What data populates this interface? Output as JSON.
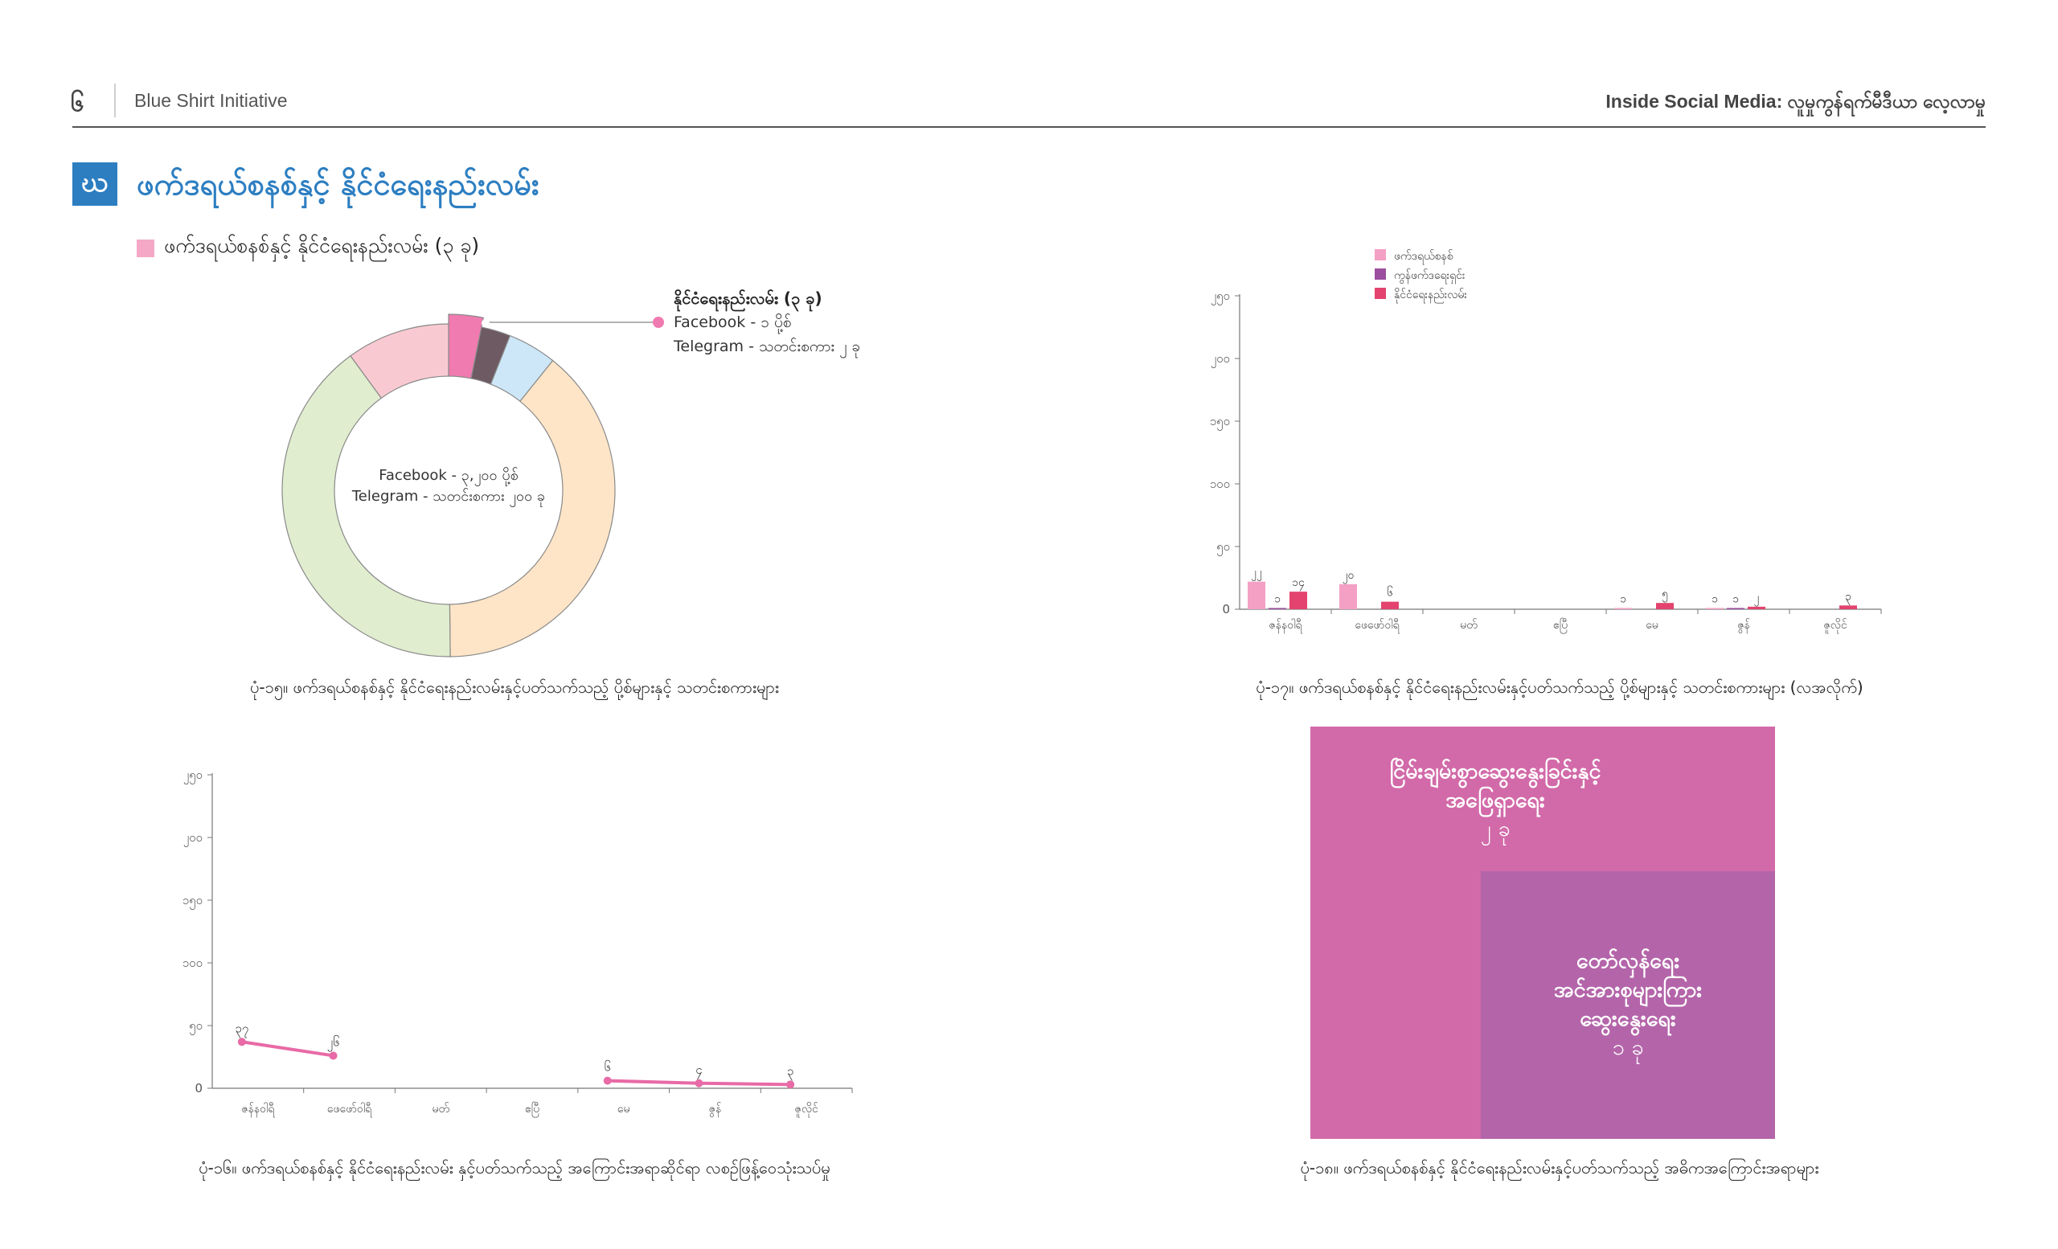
{
  "header": {
    "page_number": "၆",
    "organization": "Blue Shirt Initiative",
    "publication": "Inside Social Media: လူမှုကွန်ရက်မီဒီယာ လေ့လာမှု"
  },
  "section": {
    "letter": "ဃ",
    "title": "ဖက်ဒရယ်စနစ်နှင့် နိုင်ငံရေးနည်းလမ်း",
    "legend_label": "ဖက်ဒရယ်စနစ်နှင့် နိုင်ငံရေးနည်းလမ်း (၃ ခု)"
  },
  "donut": {
    "center_line1": "Facebook - ၃,၂၀၀ ပို့စ်",
    "center_line2": "Telegram - သတင်းစကား ၂၀၀ ခု",
    "callout_title": "နိုင်ငံရေးနည်းလမ်း (၃ ခု)",
    "callout_facebook": "Facebook  -    ၁ ပို့စ်",
    "callout_telegram": "Telegram  -    သတင်းစကား ၂ ခု",
    "caption": "ပုံ-၁၅။ ဖက်ဒရယ်စနစ်နှင့် နိုင်ငံရေးနည်းလမ်းနှင့်ပတ်သက်သည့် ပို့စ်များနှင့် သတင်းစကားများ"
  },
  "bar_chart": {
    "legend": [
      "ဖက်ဒရယ်စနစ်",
      "ကွန်ဖက်ဒရေးရှင်း",
      "နိုင်ငံရေးနည်းလမ်း"
    ],
    "colors": [
      "#f4a0c4",
      "#9b4f9e",
      "#e3436e"
    ],
    "caption": "ပုံ-၁၇။ ဖက်ဒရယ်စနစ်နှင့် နိုင်ငံရေးနည်းလမ်းနှင့်ပတ်သက်သည့် ပို့စ်များနှင့် သတင်းစကားများ (လအလိုက်)"
  },
  "line_chart": {
    "caption": "ပုံ-၁၆။ ဖက်ဒရယ်စနစ်နှင့် နိုင်ငံရေးနည်းလမ်း နှင့်ပတ်သက်သည့် အကြောင်းအရာဆိုင်ရာ လစဉ်ဖြန့်ဝေသုံးသပ်မှု"
  },
  "treemap": {
    "block1_line1": "ငြိမ်းချမ်းစွာဆွေးနွေးခြင်းနှင့်",
    "block1_line2": "အဖြေရှာရေး",
    "block1_count": "၂ ခု",
    "block2_line1": "တော်လှန်ရေး",
    "block2_line2": "အင်အားစုများကြား",
    "block2_line3": "ဆွေးနွေးရေး",
    "block2_count": "၁ ခု",
    "caption": "ပုံ-၁၈။ ဖက်ဒရယ်စနစ်နှင့် နိုင်ငံရေးနည်းလမ်းနှင့်ပတ်သက်သည့် အဓိကအကြောင်းအရာများ"
  },
  "chart_data": [
    {
      "type": "pie",
      "categories": [
        "",
        "",
        "",
        "",
        "",
        ""
      ],
      "values": [
        3,
        2.7,
        4.5,
        37,
        38,
        9.5
      ],
      "colors": [
        "#f07bb0",
        "#6e5a63",
        "#cde7f8",
        "#ffe5c7",
        "#e0edcf",
        "#f9c9d1"
      ]
    },
    {
      "type": "bar",
      "categories": [
        "ဇန်နဝါရီ",
        "ဖေဖော်ဝါရီ",
        "မတ်",
        "ဧပြီ",
        "မေ",
        "ဇွန်",
        "ဇူလိုင်"
      ],
      "series": [
        {
          "name": "ဖက်ဒရယ်စနစ်",
          "values": [
            22,
            20,
            0,
            0,
            1,
            1,
            0
          ],
          "labels": [
            "၂၂",
            "၂၀",
            "",
            "",
            "၁",
            "၁",
            ""
          ]
        },
        {
          "name": "ကွန်ဖက်ဒရေးရှင်း",
          "values": [
            1,
            0,
            0,
            0,
            0,
            1,
            0
          ],
          "labels": [
            "၁",
            "",
            "",
            "",
            "",
            "၁",
            ""
          ]
        },
        {
          "name": "နိုင်ငံရေးနည်းလမ်း",
          "values": [
            14,
            6,
            0,
            0,
            5,
            2,
            3
          ],
          "labels": [
            "၁၄",
            "၆",
            "",
            "",
            "၅",
            "၂",
            "၃"
          ]
        }
      ],
      "yticks": [
        "0",
        "၅၀",
        "၁၀၀",
        "၁၅၀",
        "၂၀၀",
        "၂၅၀"
      ],
      "ylim": [
        0,
        250
      ],
      "legend_position": "top-left"
    },
    {
      "type": "line",
      "categories": [
        "ဇန်နဝါရီ",
        "ဖေဖော်ဝါရီ",
        "မတ်",
        "ဧပြီ",
        "မေ",
        "ဇွန်",
        "ဇူလိုင်"
      ],
      "values": [
        37,
        26,
        null,
        null,
        6,
        4,
        3
      ],
      "labels": [
        "၃၇",
        "၂၆",
        "",
        "",
        "၆",
        "၄",
        "၃"
      ],
      "yticks": [
        "0",
        "၅၀",
        "၁၀၀",
        "၁၅၀",
        "၂၀၀",
        "၂၅၀"
      ],
      "ylim": [
        0,
        250
      ],
      "color": "#e86aa6"
    }
  ]
}
